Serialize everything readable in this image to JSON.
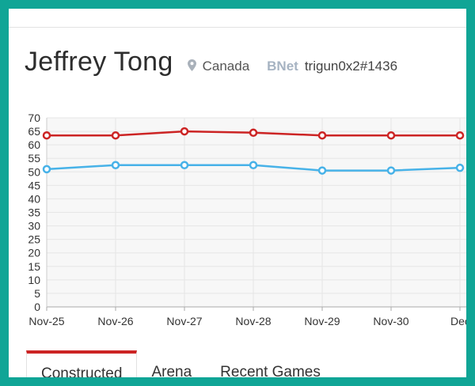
{
  "profile": {
    "name": "Jeffrey Tong",
    "location": "Canada",
    "bnet_label": "BNet",
    "bnet_tag": "trigun0x2#1436"
  },
  "tabs": [
    {
      "label": "Constructed",
      "active": true
    },
    {
      "label": "Arena",
      "active": false
    },
    {
      "label": "Recent Games",
      "active": false
    }
  ],
  "colors": {
    "accent": "#cc2424",
    "series_red": "#cc2424",
    "series_blue": "#47b2e8",
    "frame": "#10a596"
  },
  "chart_data": {
    "type": "line",
    "categories": [
      "Nov-25",
      "Nov-26",
      "Nov-27",
      "Nov-28",
      "Nov-29",
      "Nov-30",
      "Dec-"
    ],
    "ylim": [
      0,
      70
    ],
    "yticks": [
      "0",
      "5",
      "10",
      "15",
      "20",
      "25",
      "30",
      "35",
      "40",
      "45",
      "50",
      "55",
      "60",
      "65",
      "70"
    ],
    "grid": true,
    "series": [
      {
        "color": "#cc2424",
        "values": [
          63.5,
          63.5,
          65,
          64.5,
          63.5,
          63.5,
          63.5
        ]
      },
      {
        "color": "#47b2e8",
        "values": [
          51,
          52.5,
          52.5,
          52.5,
          50.5,
          50.5,
          51.5
        ]
      }
    ]
  }
}
